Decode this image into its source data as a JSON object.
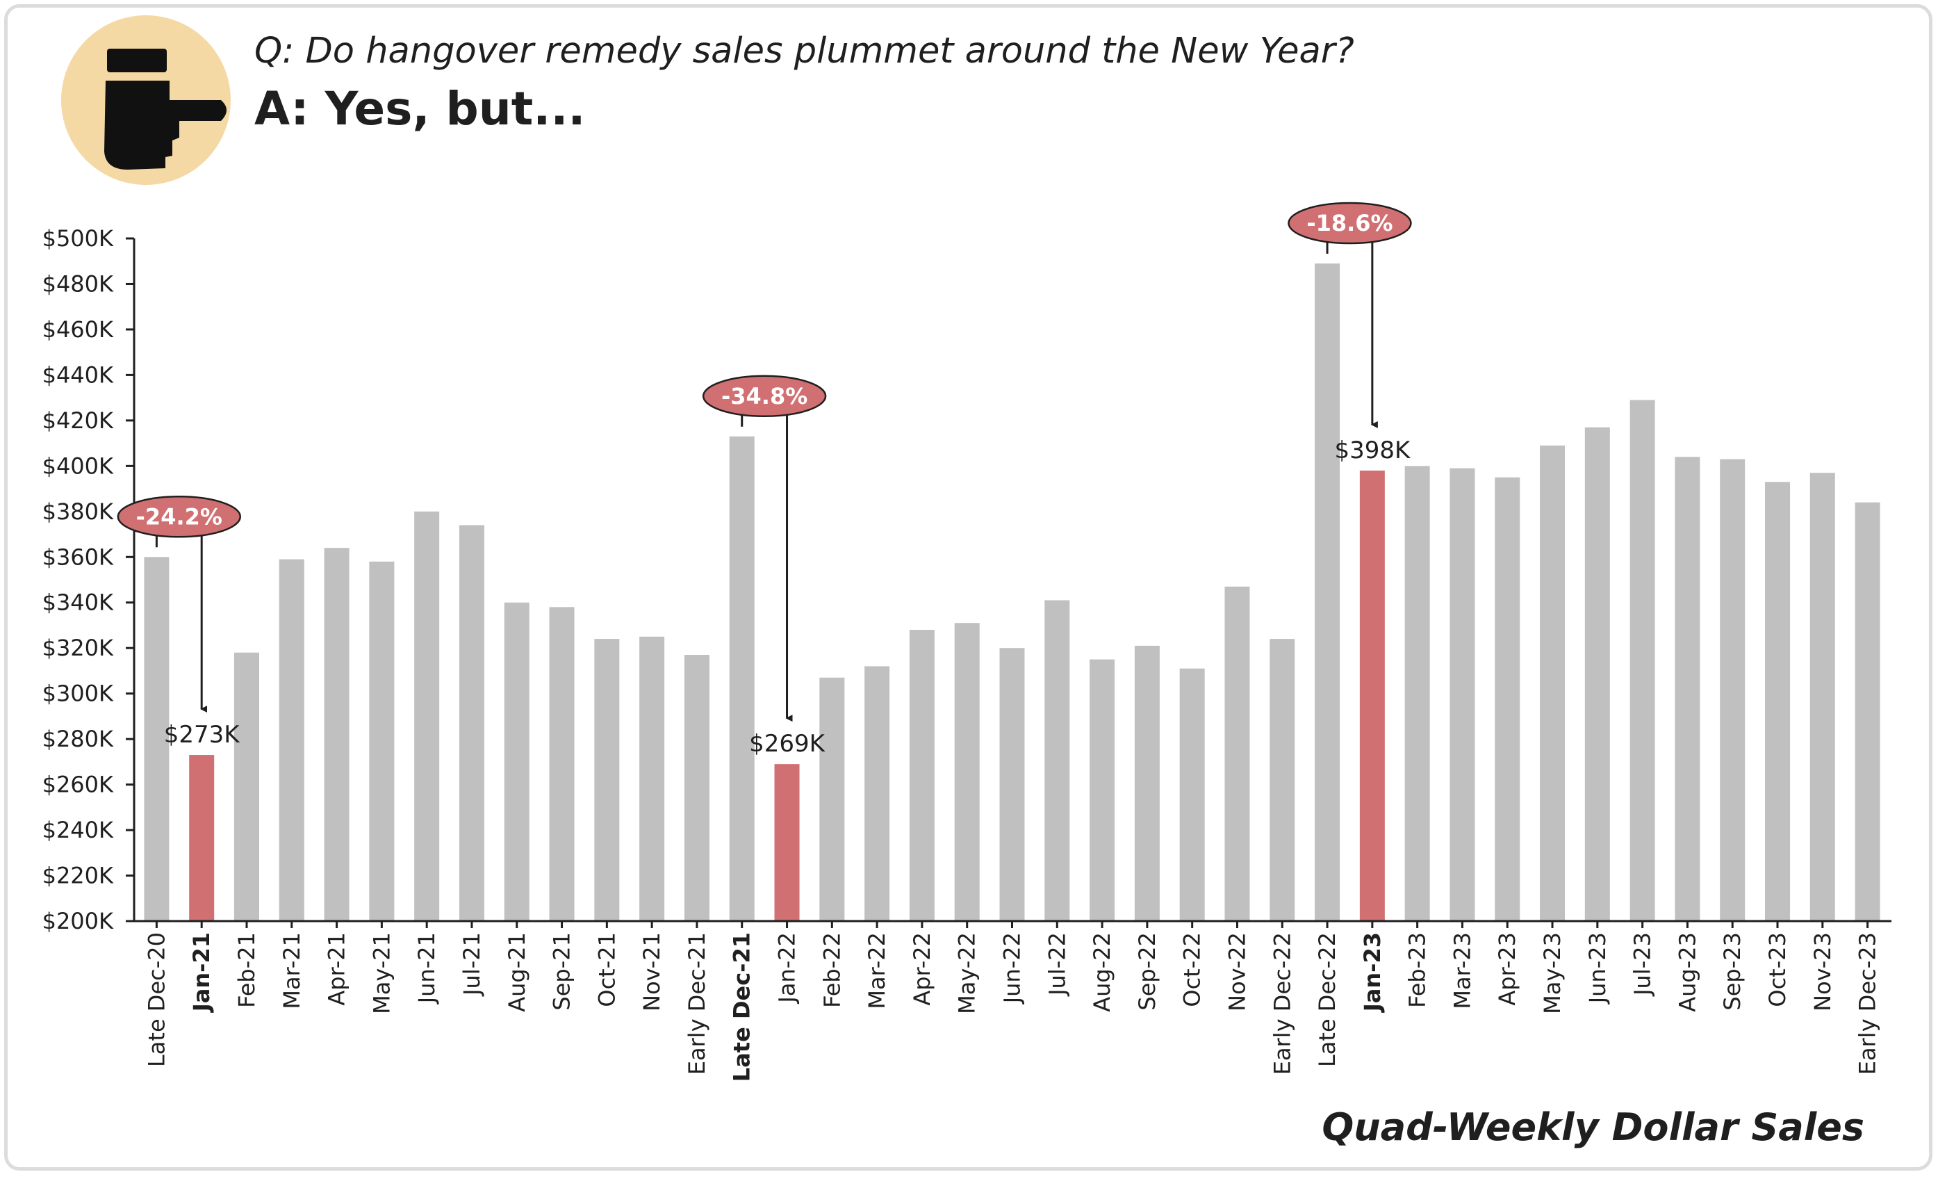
{
  "header": {
    "question": "Q: Do hangover remedy sales plummet around the New Year?",
    "answer": "A: Yes, but..."
  },
  "icon": "pointing-hand-icon",
  "footer": {
    "caption": "Quad-Weekly Dollar Sales"
  },
  "colors": {
    "bar": "#c0c0c0",
    "highlight": "#d17072",
    "badge": "#d07072",
    "icon_bg": "#f5d9a4",
    "axis": "#1f1f1f"
  },
  "chart_data": {
    "type": "bar",
    "title": "",
    "xlabel": "",
    "ylabel": "",
    "ylim": [
      200,
      500
    ],
    "y_ticks": [
      {
        "value": 500,
        "label": "$500K"
      },
      {
        "value": 480,
        "label": "$480K"
      },
      {
        "value": 460,
        "label": "$460K"
      },
      {
        "value": 440,
        "label": "$440K"
      },
      {
        "value": 420,
        "label": "$420K"
      },
      {
        "value": 400,
        "label": "$400K"
      },
      {
        "value": 380,
        "label": "$380K"
      },
      {
        "value": 360,
        "label": "$360K"
      },
      {
        "value": 340,
        "label": "$340K"
      },
      {
        "value": 320,
        "label": "$320K"
      },
      {
        "value": 300,
        "label": "$300K"
      },
      {
        "value": 280,
        "label": "$280K"
      },
      {
        "value": 260,
        "label": "$260K"
      },
      {
        "value": 240,
        "label": "$240K"
      },
      {
        "value": 220,
        "label": "$220K"
      },
      {
        "value": 200,
        "label": "$200K"
      }
    ],
    "unit": "$K",
    "categories": [
      "Late Dec-20",
      "Jan-21",
      "Feb-21",
      "Mar-21",
      "Apr-21",
      "May-21",
      "Jun-21",
      "Jul-21",
      "Aug-21",
      "Sep-21",
      "Oct-21",
      "Nov-21",
      "Early Dec-21",
      "Late Dec-21",
      "Jan-22",
      "Feb-22",
      "Mar-22",
      "Apr-22",
      "May-22",
      "Jun-22",
      "Jul-22",
      "Aug-22",
      "Sep-22",
      "Oct-22",
      "Nov-22",
      "Early Dec-22",
      "Late Dec-22",
      "Jan-23",
      "Feb-23",
      "Mar-23",
      "Apr-23",
      "May-23",
      "Jun-23",
      "Jul-23",
      "Aug-23",
      "Sep-23",
      "Oct-23",
      "Nov-23",
      "Early Dec-23"
    ],
    "values": [
      360,
      273,
      318,
      359,
      364,
      358,
      380,
      374,
      340,
      338,
      324,
      325,
      317,
      413,
      269,
      307,
      312,
      328,
      331,
      320,
      341,
      315,
      321,
      311,
      347,
      324,
      489,
      398,
      400,
      399,
      395,
      409,
      417,
      429,
      404,
      403,
      393,
      397,
      384
    ],
    "highlighted": [
      "Jan-21",
      "Jan-22",
      "Jan-23"
    ],
    "bold_labels": [
      "Jan-21",
      "Late Dec-21",
      "Jan-23"
    ],
    "data_labels": [
      {
        "category": "Jan-21",
        "text": "$273K"
      },
      {
        "category": "Jan-22",
        "text": "$269K"
      },
      {
        "category": "Jan-23",
        "text": "$398K"
      }
    ],
    "annotations": [
      {
        "from": "Late Dec-20",
        "to": "Jan-21",
        "text": "-24.2%"
      },
      {
        "from": "Late Dec-21",
        "to": "Jan-22",
        "text": "-34.8%"
      },
      {
        "from": "Late Dec-22",
        "to": "Jan-23",
        "text": "-18.6%"
      }
    ],
    "grid": false,
    "legend": "none"
  }
}
